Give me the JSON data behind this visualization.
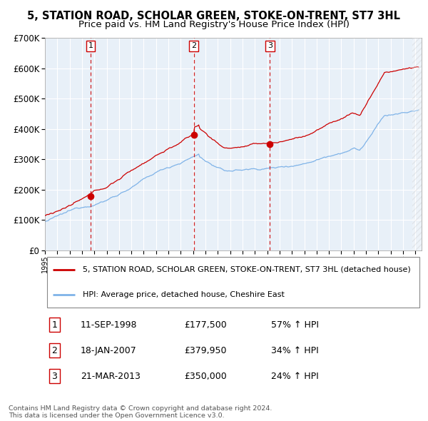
{
  "title": "5, STATION ROAD, SCHOLAR GREEN, STOKE-ON-TRENT, ST7 3HL",
  "subtitle": "Price paid vs. HM Land Registry's House Price Index (HPI)",
  "legend_red": "5, STATION ROAD, SCHOLAR GREEN, STOKE-ON-TRENT, ST7 3HL (detached house)",
  "legend_blue": "HPI: Average price, detached house, Cheshire East",
  "footer": "Contains HM Land Registry data © Crown copyright and database right 2024.\nThis data is licensed under the Open Government Licence v3.0.",
  "transactions": [
    {
      "num": 1,
      "date": "11-SEP-1998",
      "price": 177500,
      "hpi_pct": "57% ↑ HPI",
      "x": 1998.7
    },
    {
      "num": 2,
      "date": "18-JAN-2007",
      "price": 379950,
      "hpi_pct": "34% ↑ HPI",
      "x": 2007.05
    },
    {
      "num": 3,
      "date": "21-MAR-2013",
      "price": 350000,
      "hpi_pct": "24% ↑ HPI",
      "x": 2013.22
    }
  ],
  "ylim": [
    0,
    700000
  ],
  "xlim": [
    1995.0,
    2025.5
  ],
  "plot_bg": "#e8f0f8",
  "red_color": "#cc0000",
  "blue_color": "#7fb3e8",
  "dashed_color": "#cc0000",
  "grid_color": "#ffffff",
  "title_fontsize": 11,
  "subtitle_fontsize": 10
}
